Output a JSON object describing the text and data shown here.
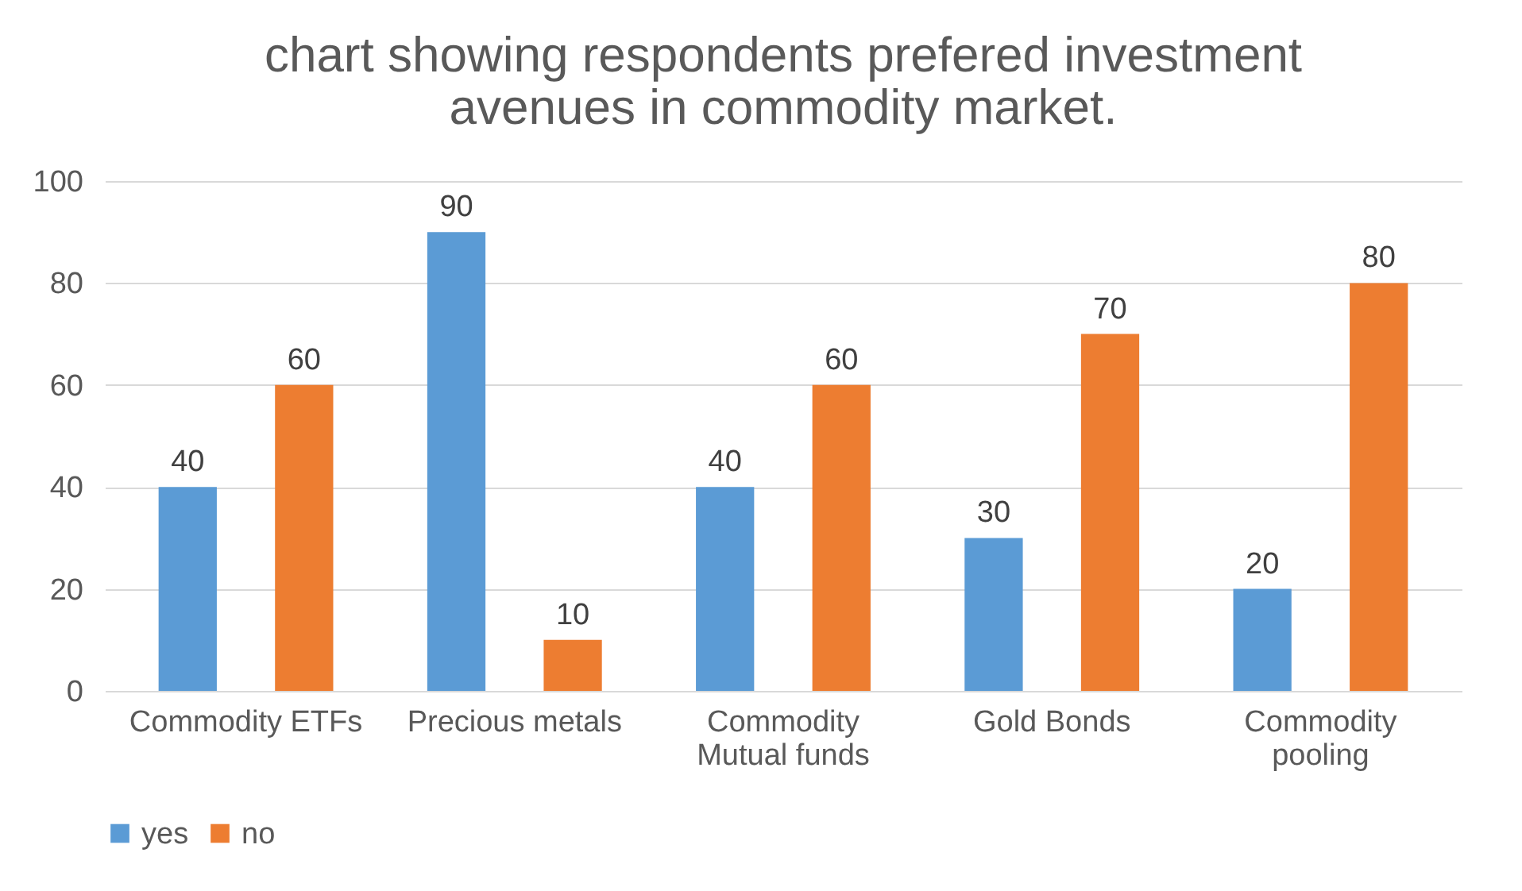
{
  "chart_data": {
    "type": "bar",
    "title": "chart showing respondents prefered investment avenues in commodity market.",
    "categories": [
      "Commodity ETFs",
      "Precious metals",
      "Commodity Mutual funds",
      "Gold Bonds",
      "Commodity pooling"
    ],
    "series": [
      {
        "name": "yes",
        "color": "#5b9bd5",
        "values": [
          40,
          90,
          40,
          30,
          20
        ]
      },
      {
        "name": "no",
        "color": "#ed7d31",
        "values": [
          60,
          10,
          60,
          70,
          80
        ]
      }
    ],
    "ylim": [
      0,
      100
    ],
    "yticks": [
      0,
      20,
      40,
      60,
      80,
      100
    ],
    "grid": "y",
    "legend": "bottom",
    "data_labels": true
  }
}
